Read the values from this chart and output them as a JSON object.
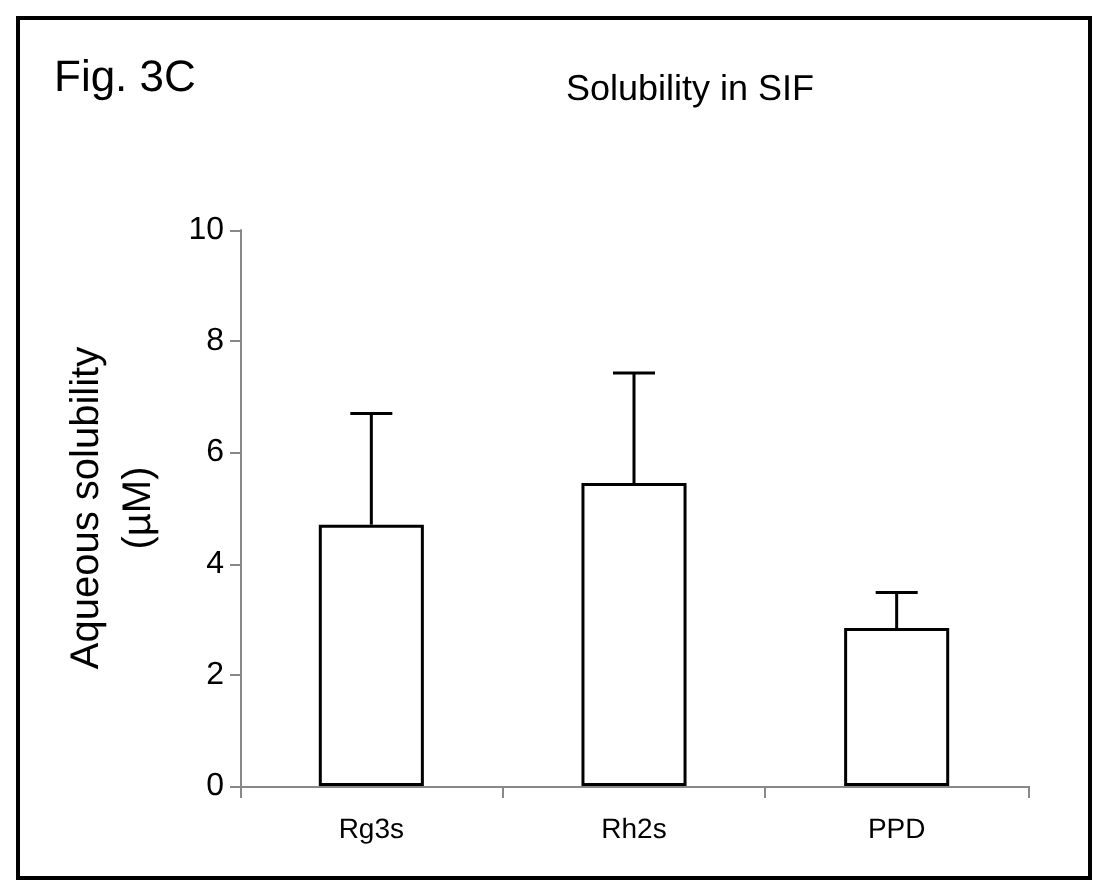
{
  "chart_data": {
    "type": "bar",
    "title": "Solubility in SIF",
    "ylabel": "Aqueous solubility\n(µM)",
    "annotations": [
      "Fig. 3C"
    ],
    "categories": [
      "Rg3s",
      "Rh2s",
      "PPD"
    ],
    "values": [
      4.7,
      5.45,
      2.84
    ],
    "errors": [
      [
        4.7,
        6.7
      ],
      [
        5.45,
        7.43
      ],
      [
        2.84,
        3.48
      ]
    ],
    "color": "#ffffff",
    "ylim": [
      0,
      10
    ],
    "yticks": [
      0,
      2,
      4,
      6,
      8,
      10
    ],
    "grid": false
  }
}
